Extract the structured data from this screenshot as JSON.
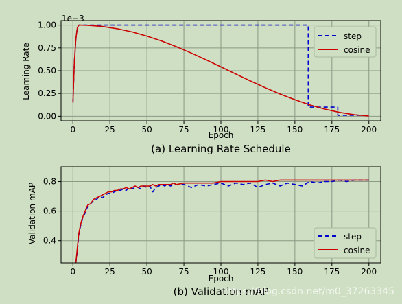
{
  "chart_data": [
    {
      "type": "line",
      "title": "(a) Learning Rate Schedule",
      "xlabel": "Epoch",
      "ylabel": "Learning Rate",
      "y_offset_label": "1e−3",
      "xlim": [
        -8,
        208
      ],
      "ylim": [
        -0.05,
        1.05
      ],
      "xticks": [
        0,
        25,
        50,
        75,
        100,
        125,
        150,
        175,
        200
      ],
      "yticks": [
        0.0,
        0.25,
        0.5,
        0.75,
        1.0
      ],
      "ytick_labels": [
        "0.00",
        "0.25",
        "0.50",
        "0.75",
        "1.00"
      ],
      "grid": true,
      "legend_position": "top-right",
      "series": [
        {
          "name": "step",
          "color": "#0000cc",
          "linestyle": "dashed",
          "x": [
            0,
            1,
            2,
            3,
            4,
            5,
            159,
            159,
            179,
            179,
            200
          ],
          "y": [
            0.15,
            0.6,
            0.85,
            0.97,
            1.0,
            1.0,
            1.0,
            0.1,
            0.1,
            0.01,
            0.01
          ]
        },
        {
          "name": "cosine",
          "color": "#cc0000",
          "linestyle": "solid",
          "x": [
            0,
            1,
            2,
            3,
            4,
            5,
            10,
            20,
            30,
            40,
            50,
            60,
            70,
            80,
            90,
            100,
            110,
            120,
            130,
            140,
            150,
            160,
            170,
            180,
            190,
            200
          ],
          "y": [
            0.15,
            0.6,
            0.85,
            0.97,
            1.0,
            1.0,
            0.998,
            0.985,
            0.96,
            0.926,
            0.88,
            0.826,
            0.763,
            0.694,
            0.62,
            0.542,
            0.464,
            0.387,
            0.313,
            0.244,
            0.181,
            0.125,
            0.079,
            0.043,
            0.017,
            0.003
          ]
        }
      ]
    },
    {
      "type": "line",
      "title": "(b) Validation mAP",
      "xlabel": "Epoch",
      "ylabel": "Validation mAP",
      "xlim": [
        -8,
        208
      ],
      "ylim": [
        0.25,
        0.9
      ],
      "xticks": [
        0,
        25,
        50,
        75,
        100,
        125,
        150,
        175,
        200
      ],
      "yticks": [
        0.4,
        0.6,
        0.8
      ],
      "ytick_labels": [
        "0.4",
        "0.6",
        "0.8"
      ],
      "grid": true,
      "legend_position": "bottom-right",
      "series": [
        {
          "name": "step",
          "color": "#0000cc",
          "linestyle": "dashed",
          "x": [
            2,
            3,
            4,
            5,
            6,
            7,
            8,
            9,
            10,
            12,
            14,
            16,
            18,
            20,
            22,
            24,
            26,
            28,
            30,
            32,
            34,
            36,
            38,
            40,
            42,
            44,
            46,
            48,
            50,
            52,
            54,
            56,
            58,
            60,
            62,
            64,
            66,
            68,
            70,
            75,
            80,
            85,
            90,
            95,
            100,
            105,
            110,
            115,
            120,
            125,
            130,
            135,
            140,
            145,
            150,
            155,
            160,
            165,
            170,
            175,
            180,
            185,
            190,
            195,
            200
          ],
          "y": [
            0.25,
            0.33,
            0.44,
            0.49,
            0.53,
            0.57,
            0.58,
            0.61,
            0.63,
            0.65,
            0.67,
            0.68,
            0.7,
            0.69,
            0.71,
            0.72,
            0.72,
            0.73,
            0.74,
            0.74,
            0.75,
            0.74,
            0.76,
            0.75,
            0.76,
            0.76,
            0.75,
            0.77,
            0.76,
            0.77,
            0.73,
            0.76,
            0.77,
            0.78,
            0.77,
            0.78,
            0.77,
            0.78,
            0.78,
            0.78,
            0.76,
            0.78,
            0.77,
            0.78,
            0.79,
            0.77,
            0.79,
            0.78,
            0.79,
            0.76,
            0.78,
            0.79,
            0.77,
            0.79,
            0.78,
            0.77,
            0.8,
            0.79,
            0.8,
            0.8,
            0.81,
            0.8,
            0.81,
            0.81,
            0.81
          ]
        },
        {
          "name": "cosine",
          "color": "#cc0000",
          "linestyle": "solid",
          "x": [
            2,
            3,
            4,
            5,
            6,
            7,
            8,
            9,
            10,
            12,
            14,
            16,
            18,
            20,
            22,
            24,
            26,
            28,
            30,
            32,
            34,
            36,
            38,
            40,
            42,
            44,
            46,
            48,
            50,
            52,
            54,
            56,
            58,
            60,
            62,
            64,
            66,
            68,
            70,
            75,
            80,
            85,
            90,
            95,
            100,
            105,
            110,
            115,
            120,
            125,
            130,
            135,
            140,
            145,
            150,
            155,
            160,
            165,
            170,
            175,
            180,
            185,
            190,
            195,
            200
          ],
          "y": [
            0.25,
            0.35,
            0.45,
            0.5,
            0.54,
            0.57,
            0.59,
            0.62,
            0.64,
            0.65,
            0.68,
            0.69,
            0.7,
            0.71,
            0.72,
            0.73,
            0.73,
            0.74,
            0.74,
            0.75,
            0.75,
            0.76,
            0.75,
            0.76,
            0.77,
            0.76,
            0.77,
            0.77,
            0.77,
            0.77,
            0.78,
            0.77,
            0.78,
            0.78,
            0.78,
            0.78,
            0.78,
            0.79,
            0.78,
            0.79,
            0.79,
            0.79,
            0.79,
            0.79,
            0.8,
            0.8,
            0.8,
            0.8,
            0.8,
            0.8,
            0.81,
            0.8,
            0.81,
            0.81,
            0.81,
            0.81,
            0.81,
            0.81,
            0.81,
            0.81,
            0.81,
            0.81,
            0.81,
            0.81,
            0.81
          ]
        }
      ]
    }
  ],
  "watermark": "https://blog.csdn.net/m0_37263345"
}
